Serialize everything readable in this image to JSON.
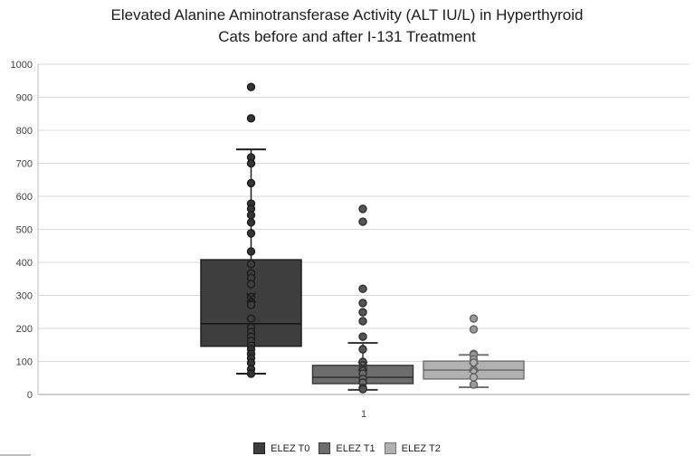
{
  "title": {
    "line1": "Elevated Alanine Aminotransferase Activity (ALT IU/L) in Hyperthyroid",
    "line2": "Cats before and after I-131 Treatment"
  },
  "chart_data": {
    "type": "boxplot",
    "title": "Elevated Alanine Aminotransferase Activity (ALT IU/L) in Hyperthyroid Cats before and after I-131 Treatment",
    "xlabel": "",
    "ylabel": "",
    "category": "1",
    "ylim": [
      0,
      1000
    ],
    "ytick_labels": [
      "0",
      "100",
      "200",
      "300",
      "400",
      "500",
      "600",
      "700",
      "800",
      "900",
      "1000"
    ],
    "grid": true,
    "legend_position": "bottom",
    "colors": {
      "gridline": "#d9d9d9",
      "axis_line": "#bfbfbf",
      "tick_text": "#404040",
      "title_text": "#1c1c1c"
    },
    "series": [
      {
        "name": "ELEZ T0",
        "fill": "#3e3e3e",
        "stroke": "#1f1f1f",
        "median_color": "#141414",
        "point_fill": "#343434",
        "point_stroke": "#1c1c1c",
        "box": {
          "q1": 146,
          "median": 214,
          "q3": 408,
          "whisker_low": 63,
          "whisker_high": 742,
          "mean": 293
        },
        "points": [
          931,
          836,
          718,
          700,
          640,
          578,
          562,
          543,
          521,
          488,
          433,
          395,
          367,
          353,
          334,
          295,
          271,
          230,
          203,
          189,
          175,
          162,
          148,
          137,
          123,
          110,
          96,
          77,
          63
        ]
      },
      {
        "name": "ELEZ T1",
        "fill": "#6d6d6d",
        "stroke": "#3a3a3a",
        "median_color": "#303030",
        "point_fill": "#555555",
        "point_stroke": "#2e2e2e",
        "box": {
          "q1": 33,
          "median": 52,
          "q3": 88,
          "whisker_low": 14,
          "whisker_high": 156,
          "mean": 85
        },
        "points": [
          562,
          523,
          320,
          277,
          249,
          222,
          175,
          137,
          99,
          88,
          77,
          63,
          47,
          36,
          20,
          16
        ]
      },
      {
        "name": "ELEZ T2",
        "fill": "#b1b1b1",
        "stroke": "#757575",
        "median_color": "#6a6a6a",
        "point_fill": "#9a9a9a",
        "point_stroke": "#636363",
        "box": {
          "q1": 47,
          "median": 74,
          "q3": 101,
          "whisker_low": 22,
          "whisker_high": 120,
          "mean": 82
        },
        "points": [
          230,
          197,
          123,
          120,
          107,
          96,
          74,
          52,
          30
        ]
      }
    ]
  }
}
